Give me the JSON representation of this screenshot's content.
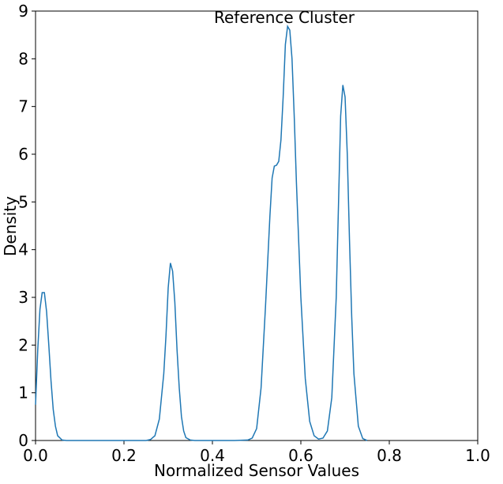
{
  "chart_data": {
    "type": "line",
    "xlabel": "Normalized Sensor Values",
    "ylabel": "Density",
    "annotation": "Reference Cluster",
    "x": [
      0.0,
      0.005,
      0.01,
      0.015,
      0.02,
      0.025,
      0.03,
      0.035,
      0.04,
      0.045,
      0.05,
      0.06,
      0.07,
      0.1,
      0.15,
      0.2,
      0.25,
      0.26,
      0.27,
      0.28,
      0.29,
      0.295,
      0.3,
      0.305,
      0.31,
      0.315,
      0.32,
      0.325,
      0.33,
      0.335,
      0.34,
      0.35,
      0.36,
      0.4,
      0.45,
      0.48,
      0.49,
      0.5,
      0.51,
      0.52,
      0.53,
      0.535,
      0.54,
      0.545,
      0.55,
      0.555,
      0.56,
      0.565,
      0.57,
      0.575,
      0.58,
      0.585,
      0.59,
      0.6,
      0.61,
      0.62,
      0.63,
      0.64,
      0.65,
      0.66,
      0.67,
      0.68,
      0.685,
      0.69,
      0.695,
      0.7,
      0.705,
      0.71,
      0.715,
      0.72,
      0.73,
      0.74,
      0.75
    ],
    "series": [
      {
        "name": "Density",
        "color": "#1f77b4",
        "values": [
          0.75,
          1.9,
          2.75,
          3.1,
          3.1,
          2.7,
          2.0,
          1.25,
          0.65,
          0.3,
          0.1,
          0.01,
          0,
          0,
          0,
          0,
          0,
          0.02,
          0.1,
          0.45,
          1.4,
          2.2,
          3.2,
          3.72,
          3.55,
          2.9,
          1.9,
          1.1,
          0.5,
          0.2,
          0.06,
          0.01,
          0,
          0,
          0,
          0.01,
          0.05,
          0.25,
          1.1,
          2.8,
          4.7,
          5.5,
          5.75,
          5.77,
          5.85,
          6.3,
          7.2,
          8.3,
          8.68,
          8.6,
          8.0,
          6.8,
          5.4,
          3.0,
          1.3,
          0.4,
          0.1,
          0.03,
          0.05,
          0.2,
          0.9,
          3.0,
          4.9,
          6.8,
          7.45,
          7.2,
          6.0,
          4.2,
          2.6,
          1.4,
          0.3,
          0.04,
          0
        ]
      }
    ],
    "xlim": [
      0,
      1
    ],
    "ylim": [
      0,
      9
    ],
    "xticks": [
      {
        "value": 0,
        "label": "0.0"
      },
      0.2,
      0.4,
      0.6,
      0.8,
      {
        "value": 1,
        "label": "1.0"
      }
    ],
    "yticks": [
      0,
      1,
      2,
      3,
      4,
      5,
      6,
      7,
      8,
      9
    ],
    "grid": false
  }
}
